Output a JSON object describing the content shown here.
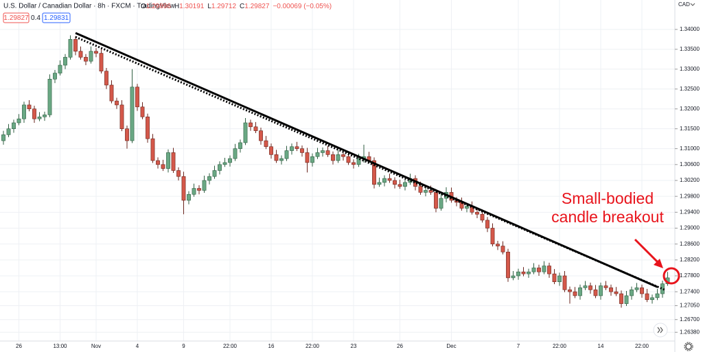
{
  "chart_data": {
    "type": "candlestick",
    "header": {
      "symbol": "U.S. Dollar / Canadian Dollar · 8h · FXCM · TradingView",
      "ohlc": [
        {
          "label": "O",
          "value": "1.29896"
        },
        {
          "label": "H",
          "value": "1.30191"
        },
        {
          "label": "L",
          "value": "1.29712"
        },
        {
          "label": "C",
          "value": "1.29827"
        }
      ],
      "change": "−0.00069 (−0.05%)",
      "sell": "1.29827",
      "spread": "0.4",
      "buy": "1.29831"
    },
    "currency": "CAD",
    "annotation": [
      "Small-bodied",
      "candle breakout"
    ],
    "up_color": "#6aa884",
    "down_color": "#d4584a",
    "grid": true,
    "x": [
      null,
      null,
      null,
      "26",
      null,
      null,
      null,
      null,
      null,
      null,
      null,
      "13:00",
      null,
      null,
      null,
      null,
      null,
      null,
      "Nov",
      null,
      null,
      null,
      null,
      null,
      null,
      null,
      "4",
      null,
      null,
      null,
      null,
      null,
      null,
      null,
      null,
      "9",
      null,
      null,
      null,
      null,
      null,
      null,
      null,
      null,
      "22:00",
      null,
      null,
      null,
      null,
      null,
      null,
      null,
      "16",
      null,
      null,
      null,
      null,
      null,
      null,
      null,
      "22:00",
      null,
      null,
      null,
      null,
      null,
      null,
      null,
      "23",
      null,
      null,
      null,
      null,
      null,
      null,
      null,
      null,
      "26",
      null,
      null,
      null,
      null,
      null,
      null,
      null,
      null,
      null,
      "Dec",
      null,
      null,
      null,
      null,
      null,
      null,
      null,
      null,
      null,
      null,
      null,
      null,
      "7",
      null,
      null,
      null,
      null,
      null,
      null,
      null,
      "22:00",
      null,
      null,
      null,
      null,
      null,
      null,
      null,
      "14",
      null,
      null,
      null,
      null,
      null,
      null,
      null,
      "22:00",
      null,
      null,
      null,
      null,
      null
    ],
    "open": [
      1.312,
      1.3135,
      1.315,
      1.3165,
      1.3175,
      1.321,
      1.32,
      1.3175,
      1.318,
      1.3185,
      1.3275,
      1.329,
      1.331,
      1.333,
      1.3375,
      1.3345,
      1.333,
      1.332,
      1.3345,
      1.334,
      1.3295,
      1.326,
      1.322,
      1.321,
      1.315,
      1.312,
      1.3255,
      1.3205,
      1.318,
      1.3125,
      1.307,
      1.306,
      1.305,
      1.309,
      1.3045,
      1.303,
      1.297,
      1.2985,
      1.3,
      1.2995,
      1.302,
      1.303,
      1.3045,
      1.306,
      1.3065,
      1.3075,
      1.31,
      1.3115,
      1.3165,
      1.3155,
      1.3145,
      1.312,
      1.3105,
      1.3085,
      1.307,
      1.3075,
      1.3095,
      1.3105,
      1.31,
      1.309,
      1.3065,
      1.308,
      1.309,
      1.3095,
      1.3085,
      1.307,
      1.3085,
      1.308,
      1.3065,
      1.306,
      1.3075,
      1.308,
      1.307,
      1.301,
      1.3015,
      1.3025,
      1.302,
      1.301,
      1.3005,
      1.3015,
      1.3025,
      1.3005,
      1.299,
      1.2995,
      1.299,
      1.295,
      1.2975,
      1.299,
      1.297,
      1.2965,
      1.295,
      1.2955,
      1.294,
      1.2935,
      1.292,
      1.29,
      1.286,
      1.2855,
      1.284,
      1.2775,
      1.278,
      1.279,
      1.2785,
      1.279,
      1.28,
      1.279,
      1.2805,
      1.2785,
      1.2765,
      1.278,
      1.2745,
      1.274,
      1.273,
      1.275,
      1.2755,
      1.2745,
      1.273,
      1.2755,
      1.275,
      1.274,
      1.2735,
      1.271,
      1.273,
      1.2745,
      1.275,
      1.2735,
      1.272,
      1.2725,
      1.2735,
      1.276
    ],
    "high": [
      1.3145,
      1.3162,
      1.3173,
      1.3187,
      1.3218,
      1.3222,
      1.3208,
      1.3192,
      1.3193,
      1.3287,
      1.3298,
      1.3322,
      1.3338,
      1.3385,
      1.3383,
      1.3357,
      1.3338,
      1.3357,
      1.3353,
      1.3352,
      1.3303,
      1.3272,
      1.3228,
      1.3222,
      1.3158,
      1.33,
      1.3263,
      1.3217,
      1.3188,
      1.3137,
      1.3078,
      1.3072,
      1.3098,
      1.3102,
      1.3053,
      1.3042,
      1.2993,
      1.3012,
      1.3008,
      1.3032,
      1.3038,
      1.3057,
      1.3068,
      1.3077,
      1.3083,
      1.3112,
      1.3123,
      1.3177,
      1.3173,
      1.3167,
      1.3153,
      1.3132,
      1.3113,
      1.3097,
      1.3083,
      1.3107,
      1.3113,
      1.3117,
      1.3108,
      1.3102,
      1.3088,
      1.3102,
      1.3103,
      1.3107,
      1.3093,
      1.3097,
      1.3093,
      1.3092,
      1.3073,
      1.3087,
      1.311,
      1.3092,
      1.3078,
      1.3027,
      1.3033,
      1.3037,
      1.3028,
      1.3022,
      1.3023,
      1.3037,
      1.3033,
      1.3017,
      1.3003,
      1.3007,
      1.2998,
      1.2987,
      1.3003,
      1.3002,
      1.2978,
      1.2977,
      1.2963,
      1.2967,
      1.2948,
      1.2947,
      1.2928,
      1.2912,
      1.2868,
      1.2867,
      1.2848,
      1.2792,
      1.2798,
      1.2802,
      1.2798,
      1.2812,
      1.2808,
      1.2817,
      1.2813,
      1.2797,
      1.2788,
      1.2792,
      1.2753,
      1.2752,
      1.2758,
      1.2767,
      1.2763,
      1.2757,
      1.2763,
      1.2767,
      1.2758,
      1.2752,
      1.2743,
      1.2742,
      1.2753,
      1.2762,
      1.2758,
      1.2747,
      1.2733,
      1.2747,
      1.2768,
      1.279
    ],
    "low": [
      1.311,
      1.3129,
      1.314,
      1.3159,
      1.3165,
      1.3194,
      1.3165,
      1.3169,
      1.317,
      1.3179,
      1.3265,
      1.3284,
      1.33,
      1.3324,
      1.3335,
      1.3324,
      1.331,
      1.3314,
      1.333,
      1.3289,
      1.325,
      1.3214,
      1.32,
      1.3144,
      1.31,
      1.3114,
      1.3195,
      1.3174,
      1.3115,
      1.3064,
      1.305,
      1.3044,
      1.304,
      1.3039,
      1.302,
      1.2935,
      1.296,
      1.2979,
      1.2985,
      1.2989,
      1.301,
      1.3024,
      1.3035,
      1.3054,
      1.3055,
      1.3069,
      1.309,
      1.3109,
      1.3145,
      1.3139,
      1.311,
      1.3099,
      1.3075,
      1.3064,
      1.306,
      1.3069,
      1.3085,
      1.3094,
      1.308,
      1.304,
      1.3055,
      1.3074,
      1.308,
      1.3079,
      1.306,
      1.3064,
      1.307,
      1.3059,
      1.305,
      1.3054,
      1.3065,
      1.3064,
      1.3,
      1.3004,
      1.3005,
      1.3014,
      1.3,
      1.2999,
      1.2995,
      1.3009,
      1.2995,
      1.2984,
      1.298,
      1.2984,
      1.294,
      1.2944,
      1.2965,
      1.2964,
      1.2955,
      1.2944,
      1.294,
      1.2934,
      1.2925,
      1.2914,
      1.289,
      1.2854,
      1.2845,
      1.2834,
      1.2765,
      1.2769,
      1.277,
      1.2779,
      1.2775,
      1.2784,
      1.278,
      1.2784,
      1.2775,
      1.2759,
      1.2755,
      1.2739,
      1.271,
      1.2724,
      1.272,
      1.2744,
      1.2735,
      1.2724,
      1.272,
      1.2744,
      1.273,
      1.2729,
      1.27,
      1.2704,
      1.272,
      1.2739,
      1.2725,
      1.2714,
      1.271,
      1.2719,
      1.2725,
      1.2755
    ],
    "close": [
      1.3135,
      1.315,
      1.3165,
      1.3175,
      1.321,
      1.32,
      1.3175,
      1.318,
      1.3185,
      1.3275,
      1.329,
      1.331,
      1.333,
      1.3375,
      1.3345,
      1.333,
      1.332,
      1.3345,
      1.334,
      1.3295,
      1.326,
      1.322,
      1.321,
      1.315,
      1.312,
      1.3255,
      1.3205,
      1.318,
      1.3125,
      1.307,
      1.306,
      1.305,
      1.309,
      1.3045,
      1.303,
      1.297,
      1.2985,
      1.3,
      1.2995,
      1.302,
      1.303,
      1.3045,
      1.306,
      1.3065,
      1.3075,
      1.31,
      1.3115,
      1.3165,
      1.3155,
      1.3145,
      1.312,
      1.3105,
      1.3085,
      1.307,
      1.3075,
      1.3095,
      1.3105,
      1.31,
      1.309,
      1.3065,
      1.308,
      1.309,
      1.3095,
      1.3085,
      1.307,
      1.3085,
      1.308,
      1.3065,
      1.306,
      1.3075,
      1.308,
      1.307,
      1.301,
      1.3015,
      1.3025,
      1.302,
      1.301,
      1.3005,
      1.3015,
      1.3025,
      1.3005,
      1.299,
      1.2995,
      1.299,
      1.295,
      1.2975,
      1.299,
      1.297,
      1.2965,
      1.295,
      1.2955,
      1.294,
      1.2935,
      1.292,
      1.29,
      1.286,
      1.2855,
      1.284,
      1.2775,
      1.278,
      1.279,
      1.2785,
      1.279,
      1.28,
      1.279,
      1.2805,
      1.2785,
      1.2765,
      1.278,
      1.2745,
      1.274,
      1.273,
      1.275,
      1.2755,
      1.2745,
      1.273,
      1.2755,
      1.275,
      1.274,
      1.2735,
      1.271,
      1.273,
      1.2745,
      1.275,
      1.2735,
      1.272,
      1.2725,
      1.2735,
      1.276,
      1.2775
    ],
    "trendlines": [
      {
        "style": "solid",
        "x": [
          14,
          127
        ],
        "y": [
          1.3391,
          1.2752
        ]
      },
      {
        "style": "dotted",
        "x": [
          14,
          128.4
        ],
        "y": [
          1.3381,
          1.2745
        ]
      }
    ],
    "ylim": [
      1.2616,
      1.3474
    ],
    "yticks": [
      {
        "value": 1.34,
        "label": "1.34000"
      },
      {
        "value": 1.335,
        "label": "1.33500"
      },
      {
        "value": 1.33,
        "label": "1.33000"
      },
      {
        "value": 1.325,
        "label": "1.32500"
      },
      {
        "value": 1.32,
        "label": "1.32000"
      },
      {
        "value": 1.315,
        "label": "1.31500"
      },
      {
        "value": 1.31,
        "label": "1.31000"
      },
      {
        "value": 1.306,
        "label": "1.30600"
      },
      {
        "value": 1.302,
        "label": "1.30200"
      },
      {
        "value": 1.298,
        "label": "1.29800"
      },
      {
        "value": 1.294,
        "label": "1.29400"
      },
      {
        "value": 1.29,
        "label": "1.29000"
      },
      {
        "value": 1.286,
        "label": "1.28600"
      },
      {
        "value": 1.282,
        "label": "1.28200"
      },
      {
        "value": 1.278,
        "label": "1.27800"
      },
      {
        "value": 1.274,
        "label": "1.27400"
      },
      {
        "value": 1.2705,
        "label": "1.27050"
      },
      {
        "value": 1.267,
        "label": "1.26700"
      },
      {
        "value": 1.2638,
        "label": "1.26380"
      }
    ]
  }
}
